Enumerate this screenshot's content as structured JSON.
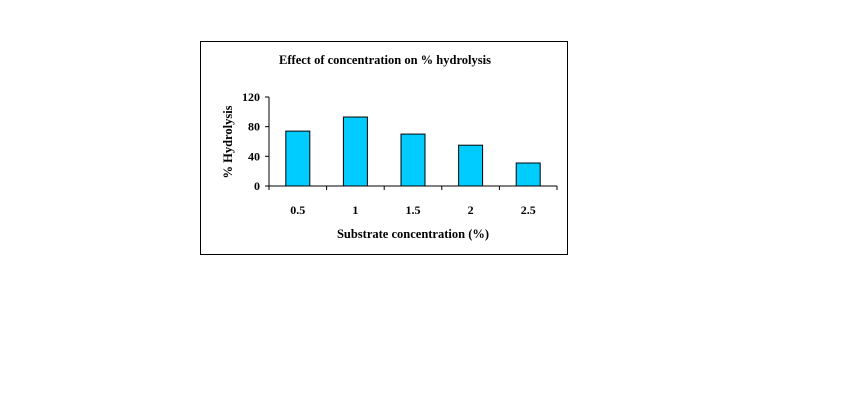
{
  "chart_data": {
    "type": "bar",
    "title": "Effect of concentration on % hydrolysis",
    "xlabel": "Substrate concentration (%)",
    "ylabel": "% Hydrolysis",
    "categories": [
      "0.5",
      "1",
      "1.5",
      "2",
      "2.5"
    ],
    "values": [
      74,
      93,
      70,
      55,
      31
    ],
    "yticks": [
      "0",
      "40",
      "80",
      "120"
    ],
    "ylim": [
      0,
      120
    ],
    "bar_color": "#00CCFF",
    "bar_edge_color": "#000000",
    "grid": false,
    "legend": "none"
  }
}
